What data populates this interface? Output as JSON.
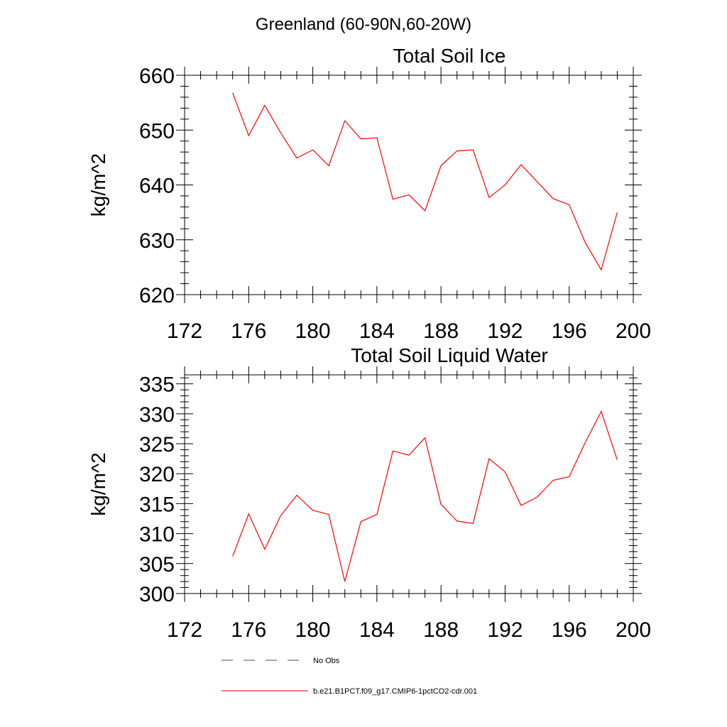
{
  "figure": {
    "title": "Greenland (60-90N,60-20W)"
  },
  "legend": {
    "placement": "bottom",
    "entries": [
      {
        "label": "No Obs",
        "style": "dashed",
        "color": "#4a4a6a"
      },
      {
        "label": "b.e21.B1PCT.f09_g17.CMIP6-1pctCO2-cdr.001",
        "style": "solid",
        "color": "#ff0000"
      }
    ]
  },
  "chart_data": [
    {
      "type": "line",
      "title": "Total Soil Ice",
      "xlabel": "",
      "ylabel": "kg/m^2",
      "xlim": [
        172,
        200
      ],
      "ylim": [
        620,
        660
      ],
      "xticks": [
        172,
        176,
        180,
        184,
        188,
        192,
        196,
        200
      ],
      "yticks": [
        620,
        630,
        640,
        650,
        660
      ],
      "grid": false,
      "series": [
        {
          "name": "b.e21.B1PCT.f09_g17.CMIP6-1pctCO2-cdr.001",
          "color": "#ff0000",
          "x": [
            175,
            176,
            177,
            178,
            179,
            180,
            181,
            182,
            183,
            184,
            185,
            186,
            187,
            188,
            189,
            190,
            191,
            192,
            193,
            194,
            195,
            196,
            197,
            198,
            199
          ],
          "y": [
            656.8,
            649.0,
            654.5,
            649.5,
            644.9,
            646.4,
            643.5,
            651.7,
            648.4,
            648.6,
            637.4,
            638.2,
            635.3,
            643.5,
            646.2,
            646.4,
            637.7,
            640.0,
            643.7,
            640.6,
            637.5,
            636.4,
            629.5,
            624.5,
            635.0
          ]
        }
      ]
    },
    {
      "type": "line",
      "title": "Total Soil Liquid Water",
      "xlabel": "",
      "ylabel": "kg/m^2",
      "xlim": [
        172,
        200
      ],
      "ylim": [
        300,
        336.5
      ],
      "xticks": [
        172,
        176,
        180,
        184,
        188,
        192,
        196,
        200
      ],
      "yticks": [
        300,
        305,
        310,
        315,
        320,
        325,
        330,
        335
      ],
      "grid": false,
      "series": [
        {
          "name": "b.e21.B1PCT.f09_g17.CMIP6-1pctCO2-cdr.001",
          "color": "#ff0000",
          "x": [
            175,
            176,
            177,
            178,
            179,
            180,
            181,
            182,
            183,
            184,
            185,
            186,
            187,
            188,
            189,
            190,
            191,
            192,
            193,
            194,
            195,
            196,
            197,
            198,
            199
          ],
          "y": [
            306.2,
            313.3,
            307.4,
            313.0,
            316.4,
            313.9,
            313.2,
            302.0,
            312.0,
            313.2,
            323.8,
            323.1,
            326.0,
            314.9,
            312.1,
            311.7,
            322.5,
            320.3,
            314.7,
            316.1,
            318.9,
            319.5,
            325.2,
            330.4,
            322.3
          ]
        }
      ]
    }
  ]
}
